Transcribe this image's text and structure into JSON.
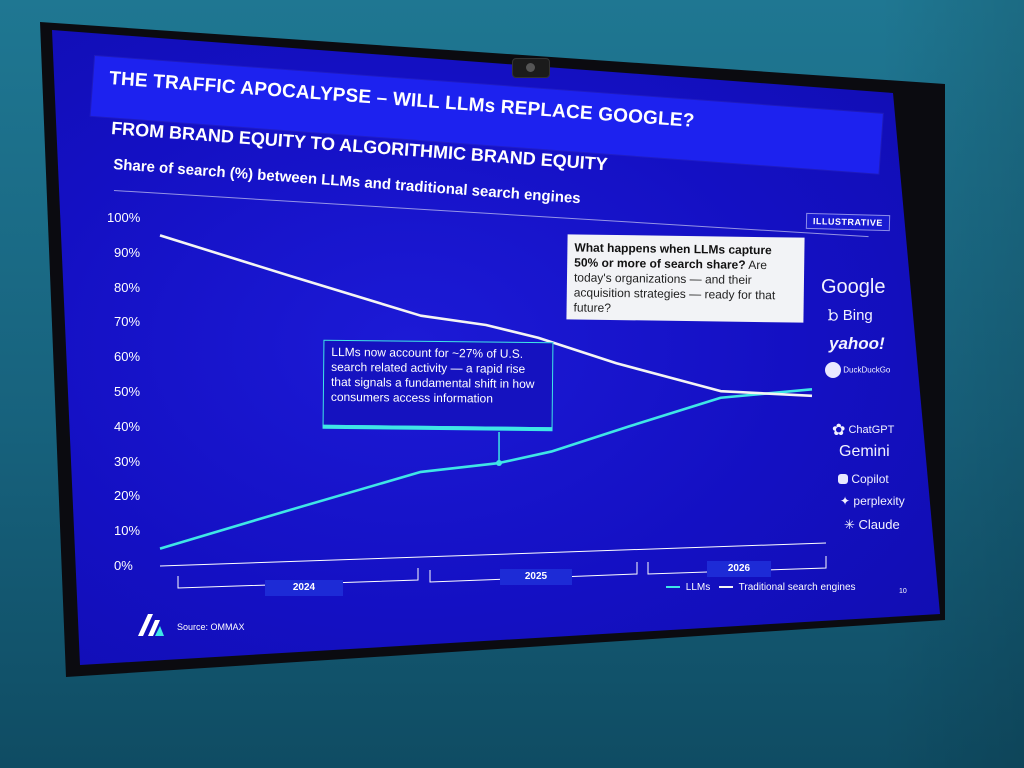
{
  "header": {
    "title": "THE TRAFFIC APOCALYPSE – WILL LLMs REPLACE GOOGLE?",
    "subtitle": "FROM BRAND EQUITY TO ALGORITHMIC BRAND EQUITY",
    "caption": "Share of search (%) between LLMs and traditional search engines",
    "badge": "ILLUSTRATIVE"
  },
  "callouts": {
    "llm_note": "LLMs now account for ~27% of U.S. search related activity — a rapid rise that signals a fundamental shift in how consumers access information",
    "question_bold": "What happens when LLMs capture 50% or more of search share?",
    "question_rest": "Are today's organizations — and their acquisition strategies — ready for that future?"
  },
  "logos": {
    "search_engines": [
      "Google",
      "Bing",
      "yahoo!",
      "DuckDuckGo"
    ],
    "llms": [
      "ChatGPT",
      "Gemini",
      "Copilot",
      "perplexity",
      "Claude"
    ]
  },
  "footer": {
    "source": "Source: OMMAX",
    "page": "10"
  },
  "colors": {
    "slide_bg": "#1410c3",
    "title_band": "#1d22ef",
    "llm_line": "#3fe6e6",
    "search_line": "#f4f4f4"
  },
  "chart_data": {
    "type": "line",
    "title": "Share of search (%) between LLMs and traditional search engines",
    "ylim": [
      0,
      100
    ],
    "yticks": [
      "0%",
      "10%",
      "20%",
      "30%",
      "40%",
      "50%",
      "60%",
      "70%",
      "80%",
      "90%",
      "100%"
    ],
    "xlim": [
      0,
      1
    ],
    "categories": [
      "2024",
      "2025",
      "2026"
    ],
    "legend_position": "bottom-right",
    "series": [
      {
        "name": "LLMs",
        "points": [
          [
            0.0,
            5
          ],
          [
            0.2,
            15
          ],
          [
            0.4,
            25
          ],
          [
            0.52,
            27
          ],
          [
            0.6,
            30
          ],
          [
            0.72,
            37
          ],
          [
            0.86,
            45
          ],
          [
            1.0,
            47
          ]
        ]
      },
      {
        "name": "Traditional search engines",
        "points": [
          [
            0.0,
            95
          ],
          [
            0.2,
            83
          ],
          [
            0.4,
            71
          ],
          [
            0.5,
            68
          ],
          [
            0.58,
            64
          ],
          [
            0.7,
            56
          ],
          [
            0.86,
            47
          ],
          [
            1.0,
            45
          ]
        ]
      }
    ],
    "annotations": [
      {
        "series": "LLMs",
        "x": 0.52,
        "y": 27,
        "marker": true
      }
    ]
  }
}
